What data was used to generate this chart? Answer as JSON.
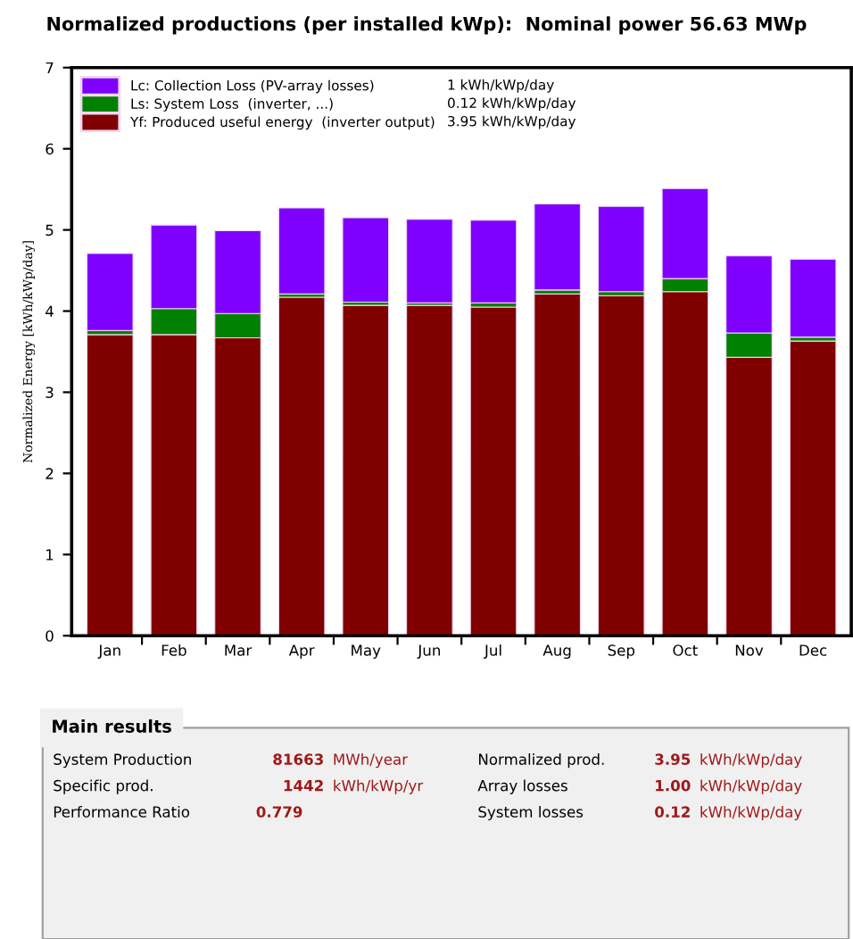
{
  "chart_data": {
    "type": "bar",
    "stacked": true,
    "title": "Normalized productions (per installed kWp):  Nominal power 56.63 MWp",
    "ylabel": "Normalized Energy [kWh/kWp/day]",
    "categories": [
      "Jan",
      "Feb",
      "Mar",
      "Apr",
      "May",
      "Jun",
      "Jul",
      "Aug",
      "Sep",
      "Oct",
      "Nov",
      "Dec"
    ],
    "series": [
      {
        "name": "Yf: Produced useful energy  (inverter output)",
        "color": "#800000",
        "values": [
          3.71,
          3.71,
          3.67,
          4.17,
          4.07,
          4.07,
          4.05,
          4.21,
          4.19,
          4.24,
          3.43,
          3.63
        ]
      },
      {
        "name": "Ls: System Loss  (inverter, ...)",
        "color": "#008000",
        "values": [
          0.05,
          0.32,
          0.3,
          0.04,
          0.04,
          0.03,
          0.05,
          0.05,
          0.05,
          0.16,
          0.3,
          0.05
        ]
      },
      {
        "name": "Lc: Collection Loss (PV-array losses)",
        "color": "#8000ff",
        "values": [
          0.95,
          1.03,
          1.02,
          1.06,
          1.04,
          1.03,
          1.02,
          1.06,
          1.05,
          1.11,
          0.95,
          0.96
        ]
      }
    ],
    "ylim": [
      0,
      7
    ],
    "yticks": [
      0,
      1,
      2,
      3,
      4,
      5,
      6,
      7
    ],
    "grid": false,
    "legend": "top left",
    "annotations": [
      "3.95 kWh/kWp/day",
      "0.12 kWh/kWp/day",
      "1 kWh/kWp/day",
      "Main results",
      "System Production",
      "81663",
      "MWh/year",
      "Normalized prod.",
      "3.95",
      "kWh/kWp/day",
      "Specific prod.",
      "1442",
      "kWh/kWp/yr",
      "Array losses",
      "1.00",
      "kWh/kWp/day",
      "Performance Ratio",
      "0.779",
      "System losses",
      "0.12",
      "kWh/kWp/day"
    ]
  }
}
